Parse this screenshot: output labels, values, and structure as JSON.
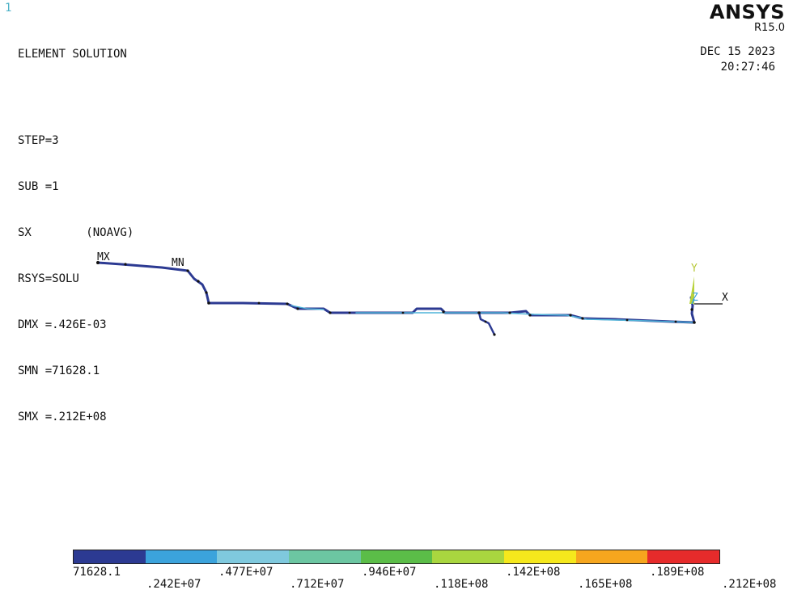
{
  "window_number": "1",
  "header": {
    "title": "ELEMENT SOLUTION",
    "lines": [
      "STEP=3",
      "SUB =1",
      "SX        (NOAVG)",
      "RSYS=SOLU",
      "DMX =.426E-03",
      "SMN =71628.1",
      "SMX =.212E+08"
    ]
  },
  "logo": {
    "brand": "ANSYS",
    "release": "R15.0"
  },
  "datetime": {
    "date": "DEC 15 2023",
    "time": "20:27:46"
  },
  "markers": {
    "max": "MX",
    "min": "MN"
  },
  "triad": {
    "x": "X",
    "y": "Y",
    "z": "Z"
  },
  "legend": {
    "colors": [
      "#2c3a92",
      "#3ba3dc",
      "#7fc9de",
      "#6cc6a2",
      "#5bbd48",
      "#a9d63f",
      "#f5e81c",
      "#f6a61e",
      "#e62b2b"
    ],
    "labels_bottom": [
      "71628.1",
      ".477E+07",
      ".946E+07",
      ".142E+08",
      ".189E+08"
    ],
    "labels_top": [
      ".242E+07",
      ".712E+07",
      ".118E+08",
      ".165E+08",
      ".212E+08"
    ]
  }
}
